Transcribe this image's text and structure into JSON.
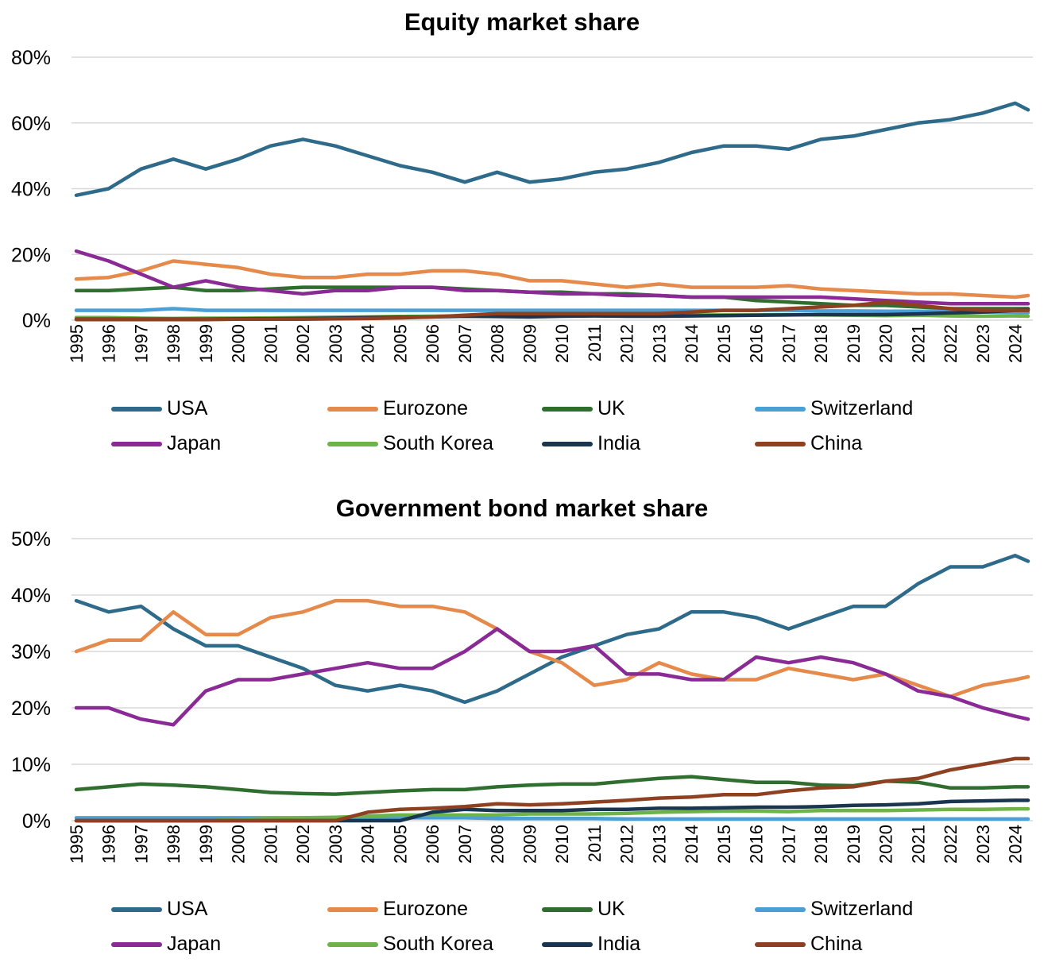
{
  "charts": [
    {
      "id": "equity",
      "title": "Equity market share",
      "yticks": [
        "0%",
        "20%",
        "40%",
        "60%",
        "80%"
      ],
      "ymax": 80
    },
    {
      "id": "bond",
      "title": "Government bond market share",
      "yticks": [
        "0%",
        "10%",
        "20%",
        "30%",
        "40%",
        "50%"
      ],
      "ymax": 50
    }
  ],
  "xticks": [
    "1995",
    "1996",
    "1997",
    "1998",
    "1999",
    "2000",
    "2001",
    "2002",
    "2003",
    "2004",
    "2005",
    "2006",
    "2007",
    "2008",
    "2009",
    "2010",
    "2011",
    "2012",
    "2013",
    "2014",
    "2015",
    "2016",
    "2017",
    "2018",
    "2019",
    "2020",
    "2021",
    "2022",
    "2023",
    "2024"
  ],
  "legend": [
    {
      "name": "USA",
      "color": "#2e6a8a"
    },
    {
      "name": "Eurozone",
      "color": "#e58a4a"
    },
    {
      "name": "UK",
      "color": "#2f6e2f"
    },
    {
      "name": "Switzerland",
      "color": "#4aa0d6"
    },
    {
      "name": "Japan",
      "color": "#8a2a95"
    },
    {
      "name": "South Korea",
      "color": "#6db34a"
    },
    {
      "name": "India",
      "color": "#1a3550"
    },
    {
      "name": "China",
      "color": "#8e4020"
    }
  ],
  "chart_data": [
    {
      "type": "line",
      "title": "Equity market share",
      "xlabel": "",
      "ylabel": "",
      "ylim": [
        0,
        80
      ],
      "xlim": [
        1995,
        2024.4
      ],
      "grid": true,
      "legend_position": "bottom",
      "x": [
        1995,
        1996,
        1997,
        1998,
        1999,
        2000,
        2001,
        2002,
        2003,
        2004,
        2005,
        2006,
        2007,
        2008,
        2009,
        2010,
        2011,
        2012,
        2013,
        2014,
        2015,
        2016,
        2017,
        2018,
        2019,
        2020,
        2021,
        2022,
        2023,
        2024,
        2024.4
      ],
      "series": [
        {
          "name": "USA",
          "values": [
            38,
            40,
            46,
            49,
            46,
            49,
            53,
            55,
            53,
            50,
            47,
            45,
            42,
            45,
            42,
            43,
            45,
            46,
            48,
            51,
            53,
            53,
            52,
            55,
            56,
            58,
            60,
            61,
            63,
            66,
            64
          ]
        },
        {
          "name": "Eurozone",
          "values": [
            12.5,
            13,
            15,
            18,
            17,
            16,
            14,
            13,
            13,
            14,
            14,
            15,
            15,
            14,
            12,
            12,
            11,
            10,
            11,
            10,
            10,
            10,
            10.5,
            9.5,
            9,
            8.5,
            8,
            8,
            7.5,
            7,
            7.5
          ]
        },
        {
          "name": "UK",
          "values": [
            9,
            9,
            9.5,
            10,
            9,
            9,
            9.5,
            10,
            10,
            10,
            10,
            10,
            9.5,
            9,
            8.5,
            8.5,
            8,
            8,
            7.5,
            7,
            7,
            6,
            5.5,
            5,
            4.5,
            4.5,
            4,
            3.5,
            3.5,
            3.5,
            3.5
          ]
        },
        {
          "name": "Switzerland",
          "values": [
            3,
            3,
            3,
            3.5,
            3,
            3,
            3,
            3,
            3,
            3,
            3,
            3,
            3,
            3,
            3,
            3,
            3,
            3,
            3,
            3,
            3,
            3,
            3,
            2.8,
            2.8,
            2.7,
            2.7,
            2.6,
            2.5,
            2.4,
            2.3
          ]
        },
        {
          "name": "Japan",
          "values": [
            21,
            18,
            14,
            10,
            12,
            10,
            9,
            8,
            9,
            9,
            10,
            10,
            9,
            9,
            8.5,
            8,
            8,
            7.5,
            7.5,
            7,
            7,
            7,
            7,
            7,
            6.5,
            6,
            5.5,
            5,
            5,
            5,
            5
          ]
        },
        {
          "name": "South Korea",
          "values": [
            0.8,
            0.8,
            0.6,
            0.5,
            0.6,
            0.6,
            0.7,
            0.8,
            0.9,
            1,
            1.1,
            1.2,
            1.3,
            1.2,
            1.3,
            1.4,
            1.5,
            1.6,
            1.6,
            1.6,
            1.6,
            1.6,
            1.7,
            1.6,
            1.5,
            1.4,
            1.5,
            1.3,
            1.2,
            1.3,
            1.2
          ]
        },
        {
          "name": "India",
          "values": [
            0.3,
            0.3,
            0.3,
            0.3,
            0.3,
            0.4,
            0.4,
            0.5,
            0.6,
            0.8,
            0.9,
            1,
            1.2,
            1.1,
            1,
            1.2,
            1.3,
            1.2,
            1.2,
            1.3,
            1.4,
            1.5,
            1.6,
            1.7,
            1.7,
            1.7,
            1.9,
            2.2,
            2.5,
            3,
            3.2
          ]
        },
        {
          "name": "China",
          "values": [
            0.2,
            0.2,
            0.2,
            0.2,
            0.2,
            0.3,
            0.3,
            0.3,
            0.4,
            0.5,
            0.7,
            1,
            1.5,
            2,
            2,
            2,
            2,
            2,
            2,
            2.5,
            3,
            3,
            3.5,
            4,
            4.5,
            5.5,
            4.5,
            3.5,
            3,
            3,
            3
          ]
        }
      ]
    },
    {
      "type": "line",
      "title": "Government bond market share",
      "xlabel": "",
      "ylabel": "",
      "ylim": [
        0,
        50
      ],
      "xlim": [
        1995,
        2024.4
      ],
      "grid": true,
      "legend_position": "bottom",
      "x": [
        1995,
        1996,
        1997,
        1998,
        1999,
        2000,
        2001,
        2002,
        2003,
        2004,
        2005,
        2006,
        2007,
        2008,
        2009,
        2010,
        2011,
        2012,
        2013,
        2014,
        2015,
        2016,
        2017,
        2018,
        2019,
        2020,
        2021,
        2022,
        2023,
        2024,
        2024.4
      ],
      "series": [
        {
          "name": "USA",
          "values": [
            39,
            37,
            38,
            34,
            31,
            31,
            29,
            27,
            24,
            23,
            24,
            23,
            21,
            23,
            26,
            29,
            31,
            33,
            34,
            37,
            37,
            36,
            34,
            36,
            38,
            38,
            42,
            45,
            45,
            47,
            46
          ]
        },
        {
          "name": "Eurozone",
          "values": [
            30,
            32,
            32,
            37,
            33,
            33,
            36,
            37,
            39,
            39,
            38,
            38,
            37,
            34,
            30,
            28,
            24,
            25,
            28,
            26,
            25,
            25,
            27,
            26,
            25,
            26,
            24,
            22,
            24,
            25,
            25.5
          ]
        },
        {
          "name": "UK",
          "values": [
            5.5,
            6,
            6.5,
            6.3,
            6,
            5.5,
            5,
            4.8,
            4.7,
            5,
            5.3,
            5.5,
            5.5,
            6,
            6.3,
            6.5,
            6.5,
            7,
            7.5,
            7.8,
            7.3,
            6.8,
            6.8,
            6.3,
            6.2,
            7,
            6.8,
            5.8,
            5.8,
            6,
            6
          ]
        },
        {
          "name": "Switzerland",
          "values": [
            0.5,
            0.5,
            0.5,
            0.5,
            0.5,
            0.5,
            0.5,
            0.5,
            0.5,
            0.5,
            0.5,
            0.5,
            0.5,
            0.4,
            0.4,
            0.4,
            0.4,
            0.3,
            0.3,
            0.3,
            0.3,
            0.3,
            0.3,
            0.3,
            0.3,
            0.3,
            0.3,
            0.3,
            0.3,
            0.3,
            0.3
          ]
        },
        {
          "name": "Japan",
          "values": [
            20,
            20,
            18,
            17,
            23,
            25,
            25,
            26,
            27,
            28,
            27,
            27,
            30,
            34,
            30,
            30,
            31,
            26,
            26,
            25,
            25,
            29,
            28,
            29,
            28,
            26,
            23,
            22,
            20,
            18.5,
            18
          ]
        },
        {
          "name": "South Korea",
          "values": [
            0,
            0,
            0,
            0,
            0,
            0.2,
            0.4,
            0.5,
            0.6,
            0.8,
            1,
            1,
            1,
            1,
            1.2,
            1.2,
            1.2,
            1.3,
            1.5,
            1.6,
            1.7,
            1.7,
            1.6,
            1.8,
            1.8,
            1.8,
            1.9,
            2,
            2,
            2.1,
            2.1
          ]
        },
        {
          "name": "India",
          "values": [
            0,
            0,
            0,
            0,
            0,
            0,
            0,
            0,
            0,
            0,
            0,
            1.5,
            2,
            1.8,
            1.8,
            1.8,
            2,
            2,
            2.2,
            2.2,
            2.3,
            2.4,
            2.4,
            2.5,
            2.7,
            2.8,
            3,
            3.4,
            3.5,
            3.6,
            3.6
          ]
        },
        {
          "name": "China",
          "values": [
            0,
            0,
            0,
            0,
            0,
            0,
            0,
            0,
            0,
            1.5,
            2,
            2.2,
            2.5,
            3,
            2.8,
            3,
            3.3,
            3.6,
            4,
            4.2,
            4.6,
            4.6,
            5.3,
            5.8,
            6,
            7,
            7.5,
            9,
            10,
            11,
            11
          ]
        }
      ]
    }
  ]
}
